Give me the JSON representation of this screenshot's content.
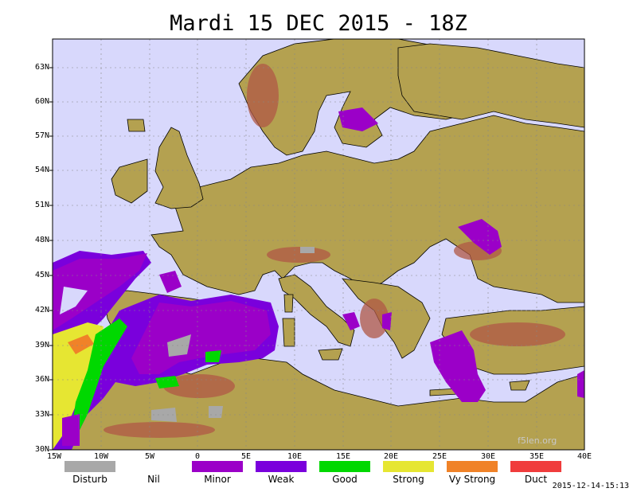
{
  "title": "Mardi 15 DEC 2015 - 18Z",
  "latitude_labels": [
    "63N",
    "60N",
    "57N",
    "54N",
    "51N",
    "48N",
    "45N",
    "42N",
    "39N",
    "36N",
    "33N",
    "30N"
  ],
  "longitude_labels": [
    "15W",
    "10W",
    "5W",
    "0",
    "5E",
    "10E",
    "15E",
    "20E",
    "25E",
    "30E",
    "35E",
    "40E"
  ],
  "legend": [
    {
      "label": "Disturb",
      "color": "#a8a8a8"
    },
    {
      "label": "Nil",
      "color": "#ffffff"
    },
    {
      "label": "Minor",
      "color": "#9b00c8"
    },
    {
      "label": "Weak",
      "color": "#7a00dc"
    },
    {
      "label": "Good",
      "color": "#00d800"
    },
    {
      "label": "Strong",
      "color": "#e6e632"
    },
    {
      "label": "Vy Strong",
      "color": "#f08228"
    },
    {
      "label": "Duct",
      "color": "#f03c3c"
    }
  ],
  "timestamp": "2015-12-14-15:13",
  "watermark": "f5len.org",
  "colors": {
    "sea": "#d7d7ff",
    "land": "#b4a050",
    "mountain": "#b05040"
  }
}
